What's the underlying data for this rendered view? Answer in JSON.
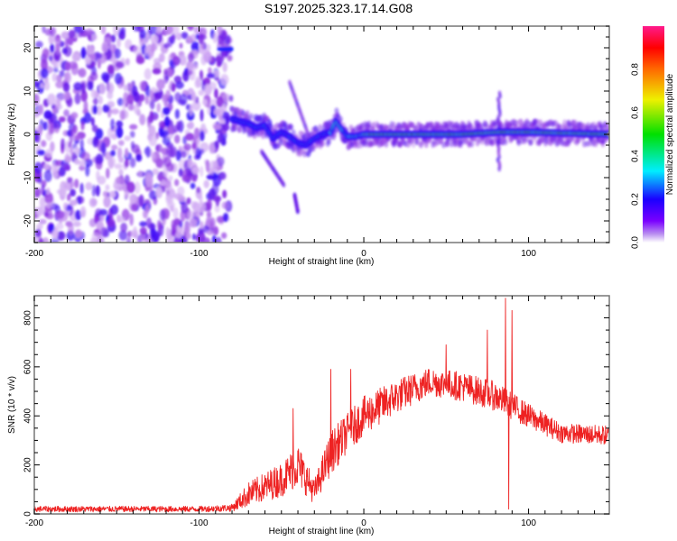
{
  "title": "S197.2025.323.17.14.G08",
  "chart_data": [
    {
      "type": "heatmap",
      "name": "spectrogram",
      "xlabel": "Height of straight line (km)",
      "ylabel": "Frequency (Hz)",
      "xlim": [
        -200,
        149
      ],
      "ylim": [
        -25,
        25
      ],
      "xticks": [
        -200,
        -100,
        0,
        100
      ],
      "xtick_labels": [
        "-200",
        "-100",
        "0",
        "100"
      ],
      "yticks": [
        -20,
        -10,
        0,
        10,
        20
      ],
      "ytick_labels": [
        "-20",
        "-10",
        "0",
        "10",
        "20"
      ],
      "colorbar": {
        "label": "Normalized spectral amplitude",
        "range": [
          0.0,
          1.0
        ],
        "ticks": [
          0.0,
          0.2,
          0.4,
          0.6,
          0.8
        ],
        "tick_labels": [
          "0.0",
          "0.2",
          "0.4",
          "0.6",
          "0.8"
        ],
        "colormap": [
          "#ffffff",
          "#8a2be2",
          "#1a00ff",
          "#00e5ff",
          "#00e000",
          "#f0f000",
          "#ff8000",
          "#ff0000",
          "#ff1a8c"
        ]
      },
      "features": {
        "noise_region_x": [
          -200,
          -82
        ],
        "tone_track": [
          {
            "x": -86,
            "f": 19.5
          },
          {
            "x": -82,
            "f": 19.8
          },
          {
            "x": -80,
            "f": 3.5
          },
          {
            "x": -75,
            "f": 3.0
          },
          {
            "x": -70,
            "f": 2.5
          },
          {
            "x": -65,
            "f": 1.5
          },
          {
            "x": -60,
            "f": 2.0
          },
          {
            "x": -55,
            "f": -1.0
          },
          {
            "x": -50,
            "f": 0.5
          },
          {
            "x": -45,
            "f": -0.5
          },
          {
            "x": -40,
            "f": -2.0
          },
          {
            "x": -35,
            "f": -2.5
          },
          {
            "x": -30,
            "f": -1.0
          },
          {
            "x": -25,
            "f": 0.0
          },
          {
            "x": -20,
            "f": 0.5
          },
          {
            "x": -17,
            "f": 3.0
          },
          {
            "x": -14,
            "f": 1.5
          },
          {
            "x": -10,
            "f": -0.5
          },
          {
            "x": -5,
            "f": -0.5
          },
          {
            "x": 0,
            "f": 0.0
          },
          {
            "x": 20,
            "f": 0.0
          },
          {
            "x": 60,
            "f": 0.0
          },
          {
            "x": 82,
            "f": 0.5
          },
          {
            "x": 100,
            "f": 0.5
          },
          {
            "x": 149,
            "f": 0.0
          }
        ]
      }
    },
    {
      "type": "line",
      "name": "snr",
      "xlabel": "Height of straight line (km)",
      "ylabel": "SNR (10 * v/v)",
      "xlim": [
        -200,
        149
      ],
      "ylim": [
        0,
        890
      ],
      "xticks": [
        -200,
        -100,
        0,
        100
      ],
      "xtick_labels": [
        "-200",
        "-100",
        "0",
        "100"
      ],
      "yticks": [
        0,
        200,
        400,
        600,
        800
      ],
      "ytick_labels": [
        "0",
        "200",
        "400",
        "600",
        "800"
      ],
      "series": [
        {
          "name": "SNR",
          "color": "#ee2222",
          "envelope": [
            {
              "x": -200,
              "mean": 20,
              "noise": 12
            },
            {
              "x": -100,
              "mean": 20,
              "noise": 12
            },
            {
              "x": -80,
              "mean": 25,
              "noise": 15
            },
            {
              "x": -70,
              "mean": 80,
              "noise": 50
            },
            {
              "x": -50,
              "mean": 140,
              "noise": 70
            },
            {
              "x": -40,
              "mean": 200,
              "noise": 90
            },
            {
              "x": -30,
              "mean": 90,
              "noise": 50
            },
            {
              "x": -20,
              "mean": 250,
              "noise": 90
            },
            {
              "x": -10,
              "mean": 330,
              "noise": 80
            },
            {
              "x": 0,
              "mean": 400,
              "noise": 80
            },
            {
              "x": 20,
              "mean": 480,
              "noise": 70
            },
            {
              "x": 40,
              "mean": 540,
              "noise": 60
            },
            {
              "x": 60,
              "mean": 520,
              "noise": 60
            },
            {
              "x": 80,
              "mean": 480,
              "noise": 60
            },
            {
              "x": 100,
              "mean": 400,
              "noise": 50
            },
            {
              "x": 120,
              "mean": 330,
              "noise": 40
            },
            {
              "x": 149,
              "mean": 320,
              "noise": 40
            }
          ],
          "spikes": [
            {
              "x": -43,
              "y": 430
            },
            {
              "x": -20,
              "y": 590
            },
            {
              "x": -8,
              "y": 590
            },
            {
              "x": 50,
              "y": 690
            },
            {
              "x": 75,
              "y": 750
            },
            {
              "x": 86,
              "y": 880
            },
            {
              "x": 88,
              "y": 20
            },
            {
              "x": 90,
              "y": 830
            }
          ]
        }
      ]
    }
  ]
}
